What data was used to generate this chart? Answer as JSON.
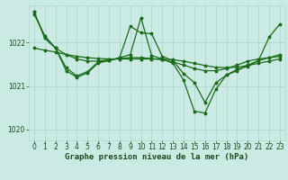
{
  "title": "Graphe pression niveau de la mer (hPa)",
  "bg_color": "#cceae4",
  "line_color": "#1a6b1a",
  "grid_color": "#b0d8d0",
  "text_color": "#1a4a1a",
  "ylim": [
    1019.75,
    1022.85
  ],
  "yticks": [
    1020,
    1021,
    1022
  ],
  "xlim": [
    -0.5,
    23.5
  ],
  "xticks": [
    0,
    1,
    2,
    3,
    4,
    5,
    6,
    7,
    8,
    9,
    10,
    11,
    12,
    13,
    14,
    15,
    16,
    17,
    18,
    19,
    20,
    21,
    22,
    23
  ],
  "series1_smooth": {
    "x": [
      0,
      1,
      2,
      3,
      4,
      5,
      6,
      7,
      8,
      9,
      10,
      11,
      12,
      13,
      14,
      15,
      16,
      17,
      18,
      19,
      20,
      21,
      22,
      23
    ],
    "y": [
      1022.65,
      1022.15,
      1021.87,
      1021.72,
      1021.62,
      1021.57,
      1021.57,
      1021.6,
      1021.63,
      1021.65,
      1021.65,
      1021.63,
      1021.6,
      1021.55,
      1021.48,
      1021.4,
      1021.35,
      1021.35,
      1021.4,
      1021.48,
      1021.57,
      1021.62,
      1021.65,
      1021.68
    ]
  },
  "series2_smooth": {
    "x": [
      0,
      1,
      2,
      3,
      4,
      5,
      6,
      7,
      8,
      9,
      10,
      11,
      12,
      13,
      14,
      15,
      16,
      17,
      18,
      19,
      20,
      21,
      22,
      23
    ],
    "y": [
      1021.87,
      1021.82,
      1021.78,
      1021.72,
      1021.68,
      1021.65,
      1021.63,
      1021.62,
      1021.62,
      1021.62,
      1021.62,
      1021.62,
      1021.62,
      1021.6,
      1021.57,
      1021.52,
      1021.47,
      1021.43,
      1021.42,
      1021.43,
      1021.47,
      1021.52,
      1021.57,
      1021.62
    ]
  },
  "series3_jagged": {
    "x": [
      0,
      1,
      2,
      3,
      4,
      5,
      6,
      7,
      8,
      9,
      10,
      11,
      12,
      13,
      14,
      15,
      16,
      17,
      18,
      19,
      20,
      21,
      22,
      23
    ],
    "y": [
      1022.7,
      1022.1,
      1021.87,
      1021.42,
      1021.23,
      1021.33,
      1021.55,
      1021.58,
      1021.65,
      1022.37,
      1022.22,
      1022.2,
      1021.68,
      1021.58,
      1021.28,
      1021.08,
      1020.62,
      1021.07,
      1021.25,
      1021.35,
      1021.48,
      1021.58,
      1021.65,
      1021.72
    ]
  },
  "series4_deep": {
    "x": [
      0,
      1,
      2,
      3,
      4,
      5,
      6,
      7,
      8,
      9,
      10,
      11,
      12,
      13,
      14,
      15,
      16,
      17,
      18,
      19,
      20,
      21,
      22,
      23
    ],
    "y": [
      1022.7,
      1022.1,
      1021.87,
      1021.35,
      1021.2,
      1021.3,
      1021.53,
      1021.58,
      1021.65,
      1021.72,
      1022.57,
      1021.7,
      1021.62,
      1021.52,
      1021.13,
      1020.42,
      1020.38,
      1020.92,
      1021.25,
      1021.38,
      1021.45,
      1021.58,
      1022.12,
      1022.42
    ]
  },
  "tick_fontsize": 5.5,
  "label_fontsize": 6.5
}
